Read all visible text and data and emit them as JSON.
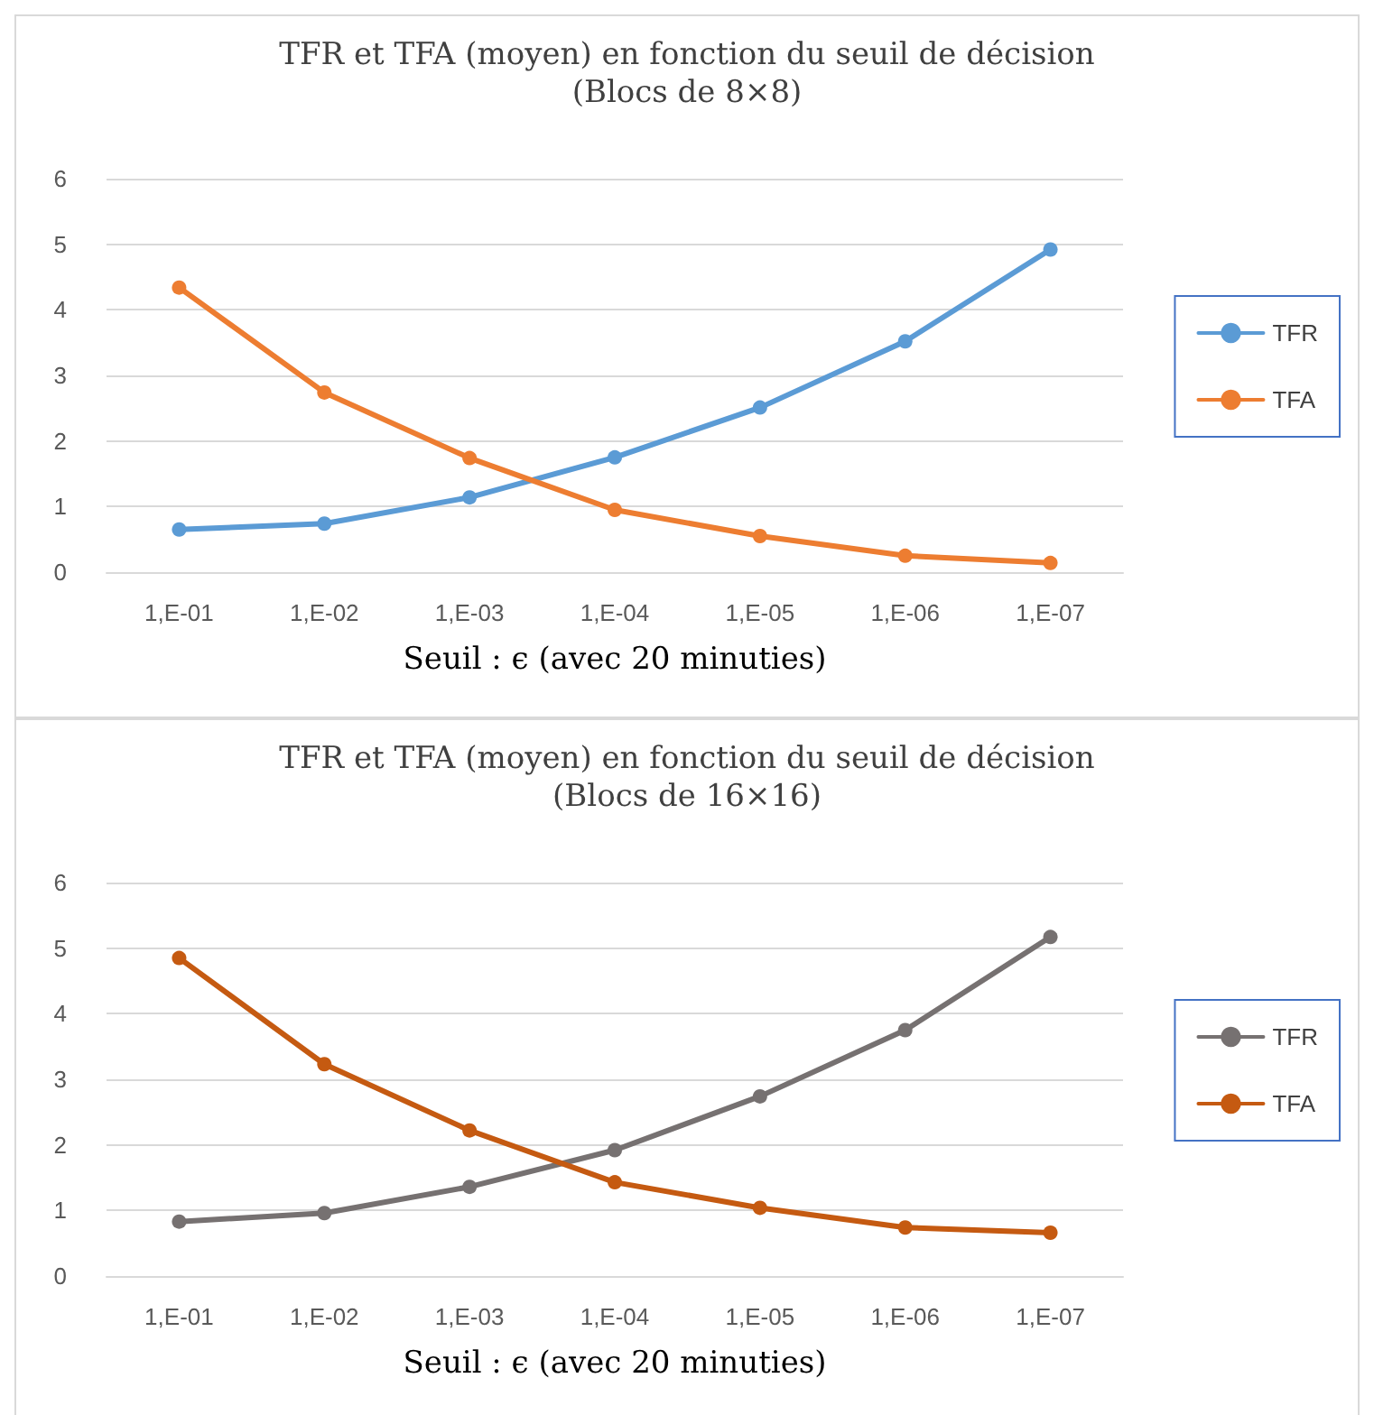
{
  "chart_data": [
    {
      "type": "line",
      "title": "TFR et TFA (moyen) en fonction du seuil de décision",
      "subtitle": "(Blocs de 8×8)",
      "xlabel": "Seuil : ϵ (avec 20 minuties)",
      "categories": [
        "1,E-01",
        "1,E-02",
        "1,E-03",
        "1,E-04",
        "1,E-05",
        "1,E-06",
        "1,E-07"
      ],
      "series": [
        {
          "name": "TFR",
          "color": "#5b9bd5",
          "values": [
            0.65,
            0.74,
            1.14,
            1.75,
            2.51,
            3.52,
            4.92
          ]
        },
        {
          "name": "TFA",
          "color": "#ed7d31",
          "values": [
            4.34,
            2.74,
            1.74,
            0.95,
            0.55,
            0.25,
            0.14
          ]
        }
      ],
      "ylim": [
        0,
        6
      ],
      "yticks": [
        0,
        1,
        2,
        3,
        4,
        5,
        6
      ],
      "grid": "y",
      "legend": "right",
      "marker": "circle",
      "line_style": "solid"
    },
    {
      "type": "line",
      "title": "TFR et TFA (moyen) en fonction du seuil de décision",
      "subtitle": "(Blocs de 16×16)",
      "xlabel": "Seuil : ϵ (avec 20 minuties)",
      "categories": [
        "1,E-01",
        "1,E-02",
        "1,E-03",
        "1,E-04",
        "1,E-05",
        "1,E-06",
        "1,E-07"
      ],
      "series": [
        {
          "name": "TFR",
          "color": "#767171",
          "values": [
            0.83,
            0.96,
            1.36,
            1.92,
            2.74,
            3.75,
            5.17
          ]
        },
        {
          "name": "TFA",
          "color": "#c55a11",
          "values": [
            4.85,
            3.23,
            2.22,
            1.43,
            1.04,
            0.74,
            0.66
          ]
        }
      ],
      "ylim": [
        0,
        6
      ],
      "yticks": [
        0,
        1,
        2,
        3,
        4,
        5,
        6
      ],
      "grid": "y",
      "legend": "right",
      "marker": "circle",
      "line_style": "solid"
    }
  ]
}
